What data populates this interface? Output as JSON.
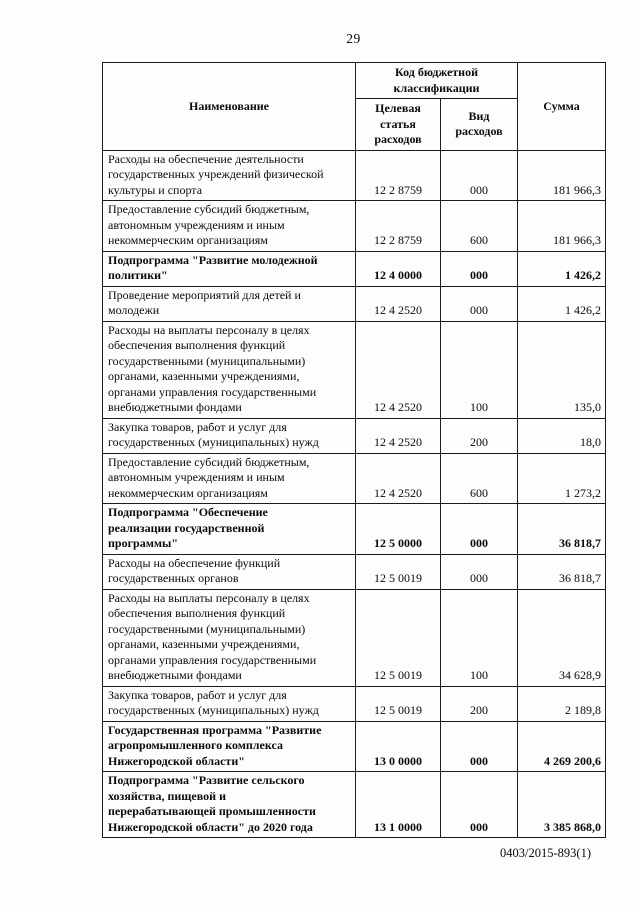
{
  "page": {
    "number": "29",
    "footer": "0403/2015-893(1)"
  },
  "table": {
    "headers": {
      "name": "Наименование",
      "code_group": "Код бюджетной классификации",
      "target_article": "Целевая статья расходов",
      "expense_type": "Вид расходов",
      "sum": "Сумма"
    },
    "rows": [
      {
        "name": "Расходы на обеспечение деятельности\nгосударственных учреждений физической\nкультуры и спорта",
        "code": "12 2 8759",
        "type": "000",
        "sum": "181 966,3",
        "bold": false
      },
      {
        "name": "Предоставление субсидий бюджетным,\nавтономным учреждениям и иным\nнекоммерческим организациям",
        "code": "12 2 8759",
        "type": "600",
        "sum": "181 966,3",
        "bold": false
      },
      {
        "name": "Подпрограмма \"Развитие молодежной\nполитики\"",
        "code": "12 4 0000",
        "type": "000",
        "sum": "1 426,2",
        "bold": true
      },
      {
        "name": "Проведение мероприятий для детей и\nмолодежи",
        "code": "12 4 2520",
        "type": "000",
        "sum": "1 426,2",
        "bold": false
      },
      {
        "name": "Расходы на выплаты персоналу в целях\nобеспечения выполнения функций\nгосударственными (муниципальными)\nорганами, казенными учреждениями,\nорганами управления государственными\nвнебюджетными фондами",
        "code": "12 4 2520",
        "type": "100",
        "sum": "135,0",
        "bold": false
      },
      {
        "name": "Закупка товаров, работ и услуг для\nгосударственных (муниципальных) нужд",
        "code": "12 4 2520",
        "type": "200",
        "sum": "18,0",
        "bold": false
      },
      {
        "name": "Предоставление субсидий бюджетным,\nавтономным учреждениям и иным\nнекоммерческим организациям",
        "code": "12 4 2520",
        "type": "600",
        "sum": "1 273,2",
        "bold": false
      },
      {
        "name": "Подпрограмма \"Обеспечение\nреализации государственной\nпрограммы\"",
        "code": "12 5 0000",
        "type": "000",
        "sum": "36 818,7",
        "bold": true
      },
      {
        "name": "Расходы на обеспечение функций\nгосударственных органов",
        "code": "12 5 0019",
        "type": "000",
        "sum": "36 818,7",
        "bold": false
      },
      {
        "name": "Расходы на выплаты персоналу в целях\nобеспечения выполнения функций\nгосударственными (муниципальными)\nорганами, казенными учреждениями,\nорганами управления государственными\nвнебюджетными фондами",
        "code": "12 5 0019",
        "type": "100",
        "sum": "34 628,9",
        "bold": false
      },
      {
        "name": "Закупка товаров, работ и услуг для\nгосударственных (муниципальных) нужд",
        "code": "12 5 0019",
        "type": "200",
        "sum": "2 189,8",
        "bold": false
      },
      {
        "name": "Государственная программа \"Развитие\nагропромышленного комплекса\nНижегородской области\"",
        "code": "13 0 0000",
        "type": "000",
        "sum": "4 269 200,6",
        "bold": true
      },
      {
        "name": "Подпрограмма \"Развитие сельского\nхозяйства, пищевой и\nперерабатывающей промышленности\nНижегородской области\" до 2020 года",
        "code": "13 1 0000",
        "type": "000",
        "sum": "3 385 868,0",
        "bold": true
      }
    ]
  }
}
